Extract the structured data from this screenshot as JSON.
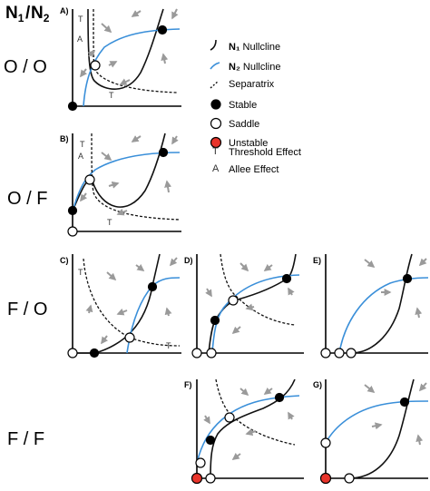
{
  "header": {
    "n1": "N",
    "n1_sub": "1",
    "slash": "/",
    "n2": "N",
    "n2_sub": "2"
  },
  "rows": [
    {
      "label": "O / O"
    },
    {
      "label": "O / F"
    },
    {
      "label": "F / O"
    },
    {
      "label": "F / F"
    }
  ],
  "panels": {
    "A": {
      "letter": "A)",
      "t_top": "T",
      "a_mark": "A",
      "t_bottom": "T"
    },
    "B": {
      "letter": "B)",
      "t_top": "T",
      "a_mark": "A",
      "t_bottom": "T"
    },
    "C": {
      "letter": "C)",
      "t_top": "T",
      "t_bottom": "T"
    },
    "D": {
      "letter": "D)"
    },
    "E": {
      "letter": "E)"
    },
    "F": {
      "letter": "F)"
    },
    "G": {
      "letter": "G)"
    }
  },
  "legend": {
    "n1": {
      "bold": "N₁",
      "rest": " Nullcline"
    },
    "n2": {
      "bold": "N₂",
      "rest": " Nullcline"
    },
    "separatrix": "Separatrix",
    "stable": "Stable",
    "saddle": "Saddle",
    "unstable": "Unstable",
    "threshold_symbol": "T",
    "threshold": "Threshold Effect",
    "allee_symbol": "A",
    "allee": "Allee Effect"
  },
  "colors": {
    "n1_nullcline": "#111111",
    "n2_nullcline": "#3a8fd9",
    "separatrix": "#111111",
    "arrow": "#9a9a9a",
    "stable": "#000000",
    "saddle": "#ffffff",
    "unstable": "#e8342b",
    "axis": "#000000"
  }
}
